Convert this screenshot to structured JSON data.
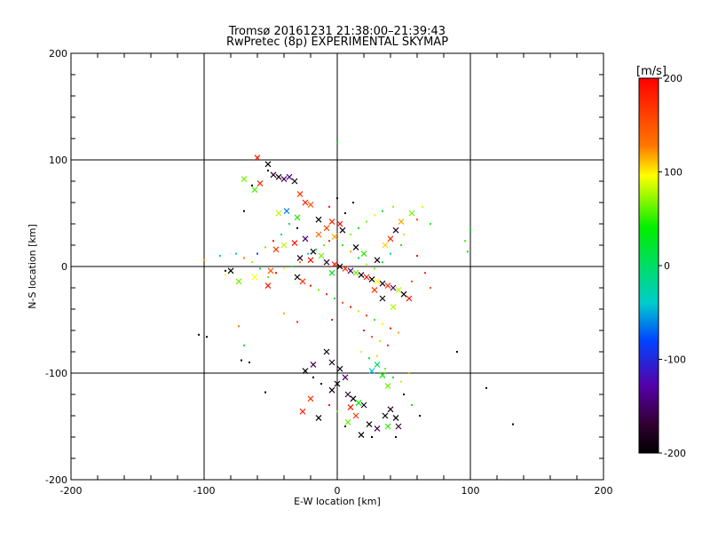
{
  "chart_data": {
    "type": "scatter",
    "title": "Tromsø 20161231 21:38:00–21:39:43",
    "subtitle": "RwPretec (8p) EXPERIMENTAL SKYMAP",
    "xlabel": "E-W location [km]",
    "ylabel": "N-S location [km]",
    "xlim": [
      -200,
      200
    ],
    "ylim": [
      -200,
      200
    ],
    "x_ticks": [
      "-200",
      "-100",
      "0",
      "100",
      "200"
    ],
    "y_ticks": [
      "-200",
      "-100",
      "0",
      "100",
      "200"
    ],
    "x_tick_values": [
      -200,
      -100,
      0,
      100,
      200
    ],
    "y_tick_values": [
      -200,
      -100,
      0,
      100,
      200
    ],
    "grid_values": [
      -100,
      0,
      100
    ],
    "colorbar": {
      "label": "[m/s]",
      "range": [
        -200,
        200
      ],
      "ticks": [
        "200",
        "100",
        "0",
        "-100",
        "-200"
      ],
      "tick_values": [
        200,
        100,
        0,
        -100,
        -200
      ]
    },
    "series": [
      {
        "name": "crosses",
        "marker": "x",
        "points": [
          [
            -60,
            102,
            190
          ],
          [
            -52,
            96,
            -200
          ],
          [
            -48,
            86,
            -180
          ],
          [
            -44,
            84,
            -190
          ],
          [
            -40,
            82,
            -160
          ],
          [
            -36,
            84,
            -140
          ],
          [
            -32,
            80,
            -200
          ],
          [
            -58,
            78,
            180
          ],
          [
            -70,
            82,
            60
          ],
          [
            -62,
            72,
            50
          ],
          [
            -28,
            68,
            170
          ],
          [
            -24,
            60,
            190
          ],
          [
            -20,
            58,
            150
          ],
          [
            -38,
            52,
            -60
          ],
          [
            -44,
            50,
            80
          ],
          [
            -30,
            46,
            40
          ],
          [
            -14,
            44,
            -200
          ],
          [
            -4,
            42,
            180
          ],
          [
            2,
            40,
            190
          ],
          [
            -8,
            36,
            160
          ],
          [
            4,
            34,
            -190
          ],
          [
            -14,
            30,
            140
          ],
          [
            -2,
            28,
            120
          ],
          [
            -24,
            26,
            -150
          ],
          [
            -32,
            22,
            190
          ],
          [
            -40,
            20,
            80
          ],
          [
            -46,
            16,
            170
          ],
          [
            -18,
            14,
            -200
          ],
          [
            -12,
            10,
            60
          ],
          [
            -28,
            8,
            -180
          ],
          [
            -20,
            6,
            190
          ],
          [
            -8,
            4,
            -170
          ],
          [
            -2,
            2,
            180
          ],
          [
            2,
            0,
            -200
          ],
          [
            6,
            -2,
            170
          ],
          [
            10,
            -4,
            -150
          ],
          [
            14,
            -6,
            60
          ],
          [
            18,
            -8,
            -190
          ],
          [
            22,
            -10,
            190
          ],
          [
            26,
            -12,
            -200
          ],
          [
            30,
            -14,
            100
          ],
          [
            34,
            -16,
            -180
          ],
          [
            38,
            -18,
            170
          ],
          [
            42,
            -20,
            -150
          ],
          [
            46,
            -22,
            80
          ],
          [
            50,
            -26,
            -200
          ],
          [
            54,
            -30,
            190
          ],
          [
            -4,
            -6,
            20
          ],
          [
            -30,
            -10,
            -200
          ],
          [
            -26,
            -14,
            170
          ],
          [
            -50,
            -4,
            150
          ],
          [
            -62,
            -10,
            100
          ],
          [
            -74,
            -14,
            60
          ],
          [
            -80,
            -4,
            -200
          ],
          [
            -52,
            -18,
            190
          ],
          [
            30,
            6,
            -190
          ],
          [
            20,
            12,
            40
          ],
          [
            14,
            18,
            -200
          ],
          [
            36,
            20,
            110
          ],
          [
            40,
            26,
            180
          ],
          [
            44,
            34,
            -180
          ],
          [
            48,
            42,
            120
          ],
          [
            56,
            50,
            60
          ],
          [
            28,
            -22,
            170
          ],
          [
            34,
            -30,
            -190
          ],
          [
            42,
            -38,
            80
          ],
          [
            -8,
            -80,
            -200
          ],
          [
            -4,
            -90,
            -180
          ],
          [
            2,
            -96,
            -190
          ],
          [
            -18,
            -92,
            -160
          ],
          [
            -24,
            -98,
            -200
          ],
          [
            6,
            -104,
            -150
          ],
          [
            0,
            -110,
            -200
          ],
          [
            -4,
            -116,
            -190
          ],
          [
            8,
            -120,
            -170
          ],
          [
            12,
            -124,
            -200
          ],
          [
            16,
            -128,
            30
          ],
          [
            20,
            -130,
            -180
          ],
          [
            14,
            -140,
            170
          ],
          [
            8,
            -146,
            60
          ],
          [
            24,
            -148,
            -190
          ],
          [
            30,
            -152,
            -160
          ],
          [
            36,
            -140,
            -200
          ],
          [
            40,
            -134,
            -180
          ],
          [
            44,
            -142,
            -200
          ],
          [
            38,
            -150,
            40
          ],
          [
            46,
            -150,
            -170
          ],
          [
            18,
            -158,
            -200
          ],
          [
            10,
            -132,
            190
          ],
          [
            -20,
            -124,
            170
          ],
          [
            -14,
            -142,
            -200
          ],
          [
            -26,
            -136,
            180
          ],
          [
            30,
            -92,
            0
          ],
          [
            34,
            -102,
            30
          ],
          [
            26,
            -98,
            -40
          ],
          [
            38,
            -112,
            60
          ]
        ]
      },
      {
        "name": "dots",
        "marker": "dot",
        "points": [
          [
            0,
            116,
            20
          ],
          [
            -52,
            90,
            -190
          ],
          [
            -64,
            76,
            -200
          ],
          [
            -70,
            52,
            -200
          ],
          [
            -84,
            -4,
            -200
          ],
          [
            -104,
            -64,
            -200
          ],
          [
            -98,
            -66,
            -200
          ],
          [
            -72,
            -88,
            -200
          ],
          [
            -66,
            -90,
            -200
          ],
          [
            -54,
            -118,
            -200
          ],
          [
            90,
            -80,
            -200
          ],
          [
            112,
            -114,
            -200
          ],
          [
            132,
            -148,
            -200
          ],
          [
            100,
            34,
            30
          ],
          [
            98,
            14,
            10
          ],
          [
            96,
            24,
            50
          ],
          [
            70,
            40,
            40
          ],
          [
            64,
            56,
            90
          ],
          [
            60,
            44,
            160
          ],
          [
            50,
            30,
            110
          ],
          [
            48,
            20,
            40
          ],
          [
            40,
            12,
            -10
          ],
          [
            34,
            4,
            20
          ],
          [
            28,
            -2,
            60
          ],
          [
            22,
            2,
            80
          ],
          [
            16,
            8,
            10
          ],
          [
            10,
            14,
            120
          ],
          [
            4,
            20,
            40
          ],
          [
            -6,
            24,
            190
          ],
          [
            -10,
            20,
            60
          ],
          [
            -16,
            16,
            10
          ],
          [
            -22,
            12,
            -40
          ],
          [
            -28,
            4,
            140
          ],
          [
            -34,
            0,
            30
          ],
          [
            -40,
            -2,
            100
          ],
          [
            -46,
            -6,
            190
          ],
          [
            -52,
            -10,
            60
          ],
          [
            -58,
            -2,
            10
          ],
          [
            -64,
            4,
            80
          ],
          [
            -70,
            8,
            130
          ],
          [
            -76,
            12,
            -20
          ],
          [
            -20,
            -18,
            190
          ],
          [
            -14,
            -22,
            60
          ],
          [
            -8,
            -26,
            180
          ],
          [
            -2,
            -30,
            20
          ],
          [
            4,
            -34,
            150
          ],
          [
            10,
            -38,
            190
          ],
          [
            16,
            -42,
            80
          ],
          [
            22,
            -46,
            170
          ],
          [
            28,
            -50,
            40
          ],
          [
            34,
            -54,
            100
          ],
          [
            40,
            -58,
            190
          ],
          [
            46,
            -62,
            120
          ],
          [
            20,
            -60,
            190
          ],
          [
            26,
            -66,
            160
          ],
          [
            32,
            -70,
            80
          ],
          [
            38,
            -74,
            180
          ],
          [
            -4,
            -50,
            190
          ],
          [
            -30,
            -52,
            180
          ],
          [
            -40,
            -44,
            120
          ],
          [
            -74,
            -56,
            130
          ],
          [
            -70,
            -74,
            20
          ],
          [
            60,
            10,
            190
          ],
          [
            66,
            -6,
            180
          ],
          [
            70,
            -20,
            150
          ],
          [
            56,
            -14,
            160
          ],
          [
            -100,
            6,
            120
          ],
          [
            -84,
            -8,
            100
          ],
          [
            -88,
            10,
            -20
          ],
          [
            10,
            30,
            70
          ],
          [
            16,
            36,
            30
          ],
          [
            22,
            42,
            60
          ],
          [
            28,
            48,
            90
          ],
          [
            34,
            52,
            10
          ],
          [
            42,
            56,
            70
          ],
          [
            6,
            50,
            -200
          ],
          [
            12,
            60,
            -200
          ],
          [
            -30,
            36,
            -200
          ],
          [
            -36,
            40,
            10
          ],
          [
            -42,
            30,
            -30
          ],
          [
            -48,
            24,
            190
          ],
          [
            -54,
            18,
            60
          ],
          [
            -60,
            12,
            -80
          ],
          [
            -6,
            56,
            190
          ],
          [
            0,
            64,
            -200
          ],
          [
            18,
            -80,
            90
          ],
          [
            24,
            -86,
            30
          ],
          [
            30,
            -84,
            110
          ],
          [
            36,
            -96,
            60
          ],
          [
            42,
            -104,
            10
          ],
          [
            48,
            -108,
            80
          ],
          [
            54,
            -100,
            120
          ],
          [
            50,
            -120,
            -190
          ],
          [
            56,
            -130,
            30
          ],
          [
            62,
            -140,
            -200
          ],
          [
            -6,
            -130,
            190
          ],
          [
            0,
            -136,
            60
          ],
          [
            -12,
            -110,
            -190
          ],
          [
            -18,
            -104,
            -200
          ],
          [
            6,
            -150,
            -170
          ],
          [
            26,
            -160,
            -200
          ],
          [
            44,
            -160,
            -190
          ]
        ]
      }
    ]
  }
}
